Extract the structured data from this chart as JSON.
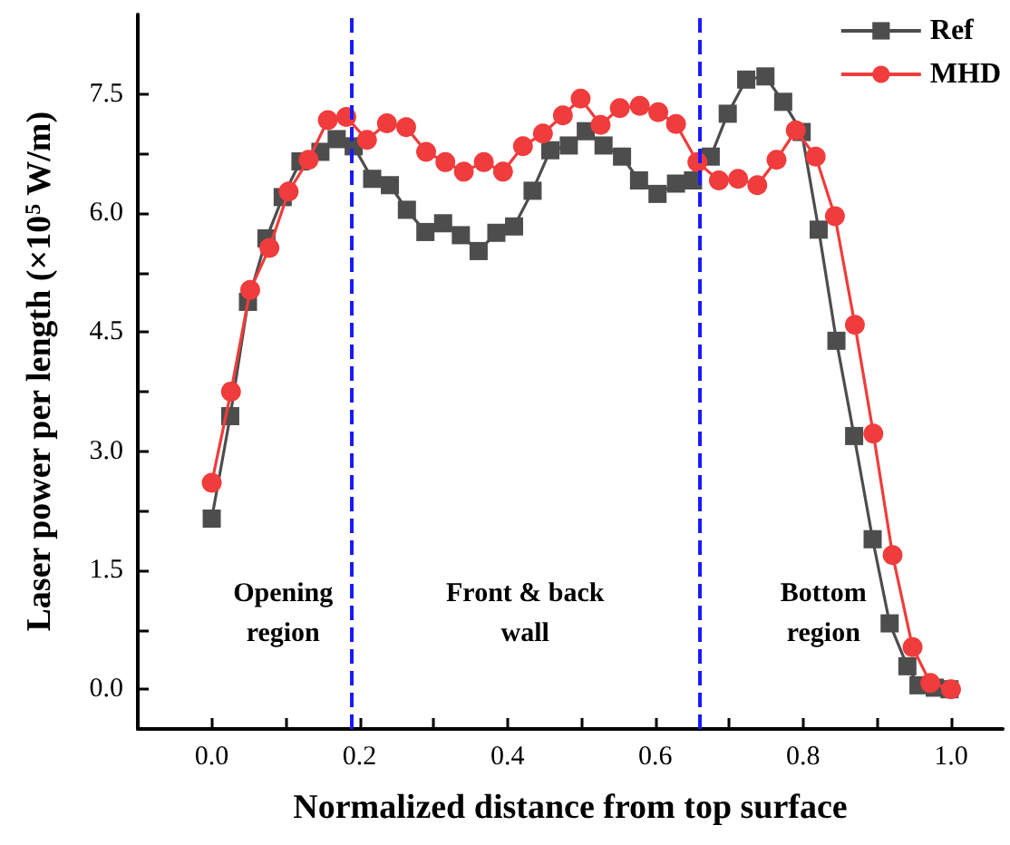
{
  "chart_data": {
    "type": "line",
    "xlabel": "Normalized distance from top surface",
    "ylabel": "Laser power per length (×10$^{5}$ W/m)",
    "xlim": [
      -0.1,
      1.07
    ],
    "ylim": [
      -0.5,
      8.5
    ],
    "xticks": [
      {
        "value": 0,
        "label": "0.0"
      },
      {
        "value": 0.1,
        "label": null
      },
      0.2,
      {
        "value": 0.3,
        "label": null
      },
      0.4,
      {
        "value": 0.5,
        "label": null
      },
      0.6,
      {
        "value": 0.7,
        "label": null
      },
      0.8,
      {
        "value": 0.9,
        "label": null
      },
      {
        "value": 1,
        "label": "1.0"
      }
    ],
    "yticks": [
      {
        "value": 0,
        "label": "0.0"
      },
      {
        "value": 0.75,
        "label": null
      },
      {
        "value": 1.5,
        "label": "1.5"
      },
      {
        "value": 2.25,
        "label": null
      },
      {
        "value": 3,
        "label": "3.0"
      },
      {
        "value": 3.75,
        "label": null
      },
      {
        "value": 4.5,
        "label": "4.5"
      },
      {
        "value": 5.25,
        "label": null
      },
      {
        "value": 6,
        "label": "6.0"
      },
      {
        "value": 6.75,
        "label": null
      },
      {
        "value": 7.5,
        "label": "7.5"
      }
    ],
    "grid": false,
    "legend": "top right",
    "line_style": "solid",
    "series": [
      {
        "name": "Ref",
        "color": "#4d4d4d",
        "marker": "square",
        "x": [
          0,
          0.025,
          0.049,
          0.074,
          0.096,
          0.12,
          0.147,
          0.169,
          0.192,
          0.217,
          0.241,
          0.264,
          0.289,
          0.313,
          0.337,
          0.361,
          0.385,
          0.409,
          0.434,
          0.458,
          0.483,
          0.506,
          0.53,
          0.555,
          0.578,
          0.603,
          0.628,
          0.651,
          0.675,
          0.698,
          0.723,
          0.749,
          0.773,
          0.798,
          0.821,
          0.845,
          0.869,
          0.894,
          0.917,
          0.941,
          0.956,
          0.978,
          0.998
        ],
        "values": [
          2.15,
          3.44,
          4.88,
          5.68,
          6.2,
          6.65,
          6.77,
          6.93,
          6.84,
          6.43,
          6.35,
          6.04,
          5.76,
          5.87,
          5.72,
          5.52,
          5.75,
          5.83,
          6.28,
          6.79,
          6.85,
          7.03,
          6.85,
          6.71,
          6.41,
          6.24,
          6.37,
          6.41,
          6.71,
          7.25,
          7.68,
          7.72,
          7.4,
          7.02,
          5.79,
          4.39,
          3.19,
          1.89,
          0.83,
          0.29,
          0.05,
          0.02,
          0
        ]
      },
      {
        "name": "MHD",
        "color": "#f03c3c",
        "marker": "circle",
        "x": [
          0,
          0.026,
          0.052,
          0.078,
          0.104,
          0.131,
          0.157,
          0.182,
          0.21,
          0.237,
          0.263,
          0.29,
          0.316,
          0.341,
          0.368,
          0.394,
          0.421,
          0.448,
          0.475,
          0.499,
          0.526,
          0.552,
          0.579,
          0.604,
          0.628,
          0.657,
          0.686,
          0.712,
          0.738,
          0.764,
          0.79,
          0.817,
          0.843,
          0.87,
          0.895,
          0.921,
          0.948,
          0.972,
          1.0
        ],
        "values": [
          2.6,
          3.75,
          5.03,
          5.56,
          6.27,
          6.67,
          7.17,
          7.21,
          6.92,
          7.13,
          7.08,
          6.77,
          6.64,
          6.52,
          6.64,
          6.52,
          6.84,
          7.0,
          7.23,
          7.44,
          7.11,
          7.32,
          7.35,
          7.27,
          7.12,
          6.64,
          6.41,
          6.43,
          6.35,
          6.67,
          7.04,
          6.71,
          5.96,
          4.59,
          3.22,
          1.69,
          0.53,
          0.08,
          0
        ]
      }
    ],
    "ref_lines": [
      {
        "axis": "x",
        "value": 0.193,
        "color": "#1a1aff",
        "line_style": "dashed"
      },
      {
        "axis": "x",
        "value": 0.655,
        "color": "#1a1aff",
        "line_style": "dashed"
      }
    ],
    "annotations": [
      "Opening\nregion",
      "Front & back\nwall",
      "Bottom\nregion"
    ]
  }
}
